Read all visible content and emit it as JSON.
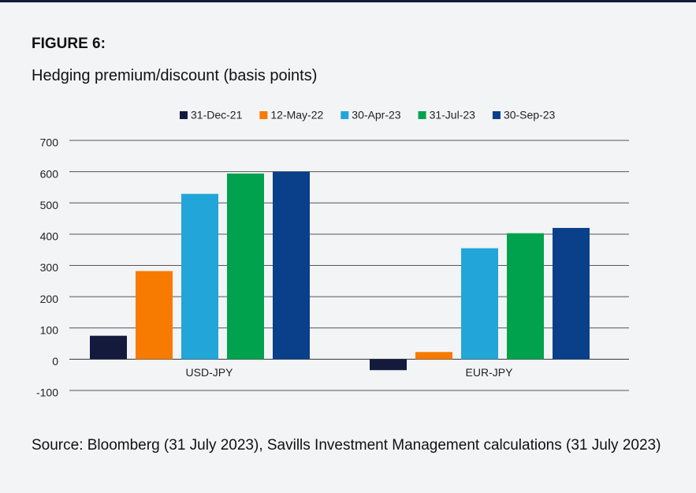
{
  "chart_data": {
    "type": "bar",
    "title": "FIGURE 6:",
    "subtitle": "Hedging premium/discount (basis points)",
    "categories": [
      "USD-JPY",
      "EUR-JPY"
    ],
    "series": [
      {
        "name": "31-Dec-21",
        "color": "#141a3c",
        "values": [
          75,
          -35
        ]
      },
      {
        "name": "12-May-22",
        "color": "#f77b00",
        "values": [
          282,
          23
        ]
      },
      {
        "name": "30-Apr-23",
        "color": "#22a6d9",
        "values": [
          529,
          355
        ]
      },
      {
        "name": "31-Jul-23",
        "color": "#00a24e",
        "values": [
          594,
          403
        ]
      },
      {
        "name": "30-Sep-23",
        "color": "#0a3f8a",
        "values": [
          600,
          420
        ]
      }
    ],
    "ylim": [
      -100,
      700
    ],
    "yticks": [
      -100,
      0,
      100,
      200,
      300,
      400,
      500,
      600,
      700
    ],
    "grid": true,
    "legend": "top",
    "source": "Source: Bloomberg (31 July 2023), Savills Investment Management calculations (31 July 2023)"
  }
}
